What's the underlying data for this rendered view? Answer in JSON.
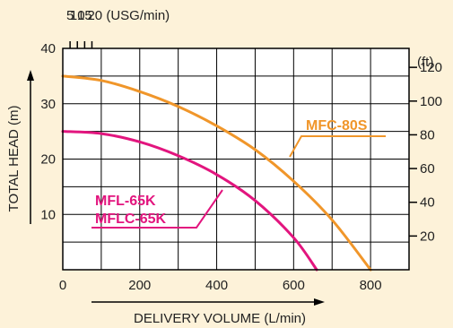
{
  "chart_data": {
    "type": "line",
    "title": "",
    "xlabel": "DELIVERY VOLUME (L/min)",
    "ylabel": "TOTAL HEAD (m)",
    "xlim": [
      0,
      900
    ],
    "ylim": [
      0,
      40
    ],
    "grid": true,
    "x_ticks": [
      0,
      200,
      400,
      600,
      800
    ],
    "x_tick_labels": [
      "0",
      "200",
      "400",
      "600",
      "800"
    ],
    "y_ticks": [
      10,
      20,
      30,
      40
    ],
    "y_tick_labels": [
      "10",
      "20",
      "30",
      "40"
    ],
    "top_axis": {
      "tick_values_lpm": [
        18.93,
        37.85,
        56.78,
        75.71
      ],
      "tick_labels": [
        "5",
        "10",
        "15",
        "20 (USG/min)"
      ]
    },
    "right_axis": {
      "unit_label": "(ft)",
      "tick_values_m": [
        6.096,
        12.192,
        18.288,
        24.384,
        30.48,
        36.576
      ],
      "tick_labels": [
        "20",
        "40",
        "60",
        "80",
        "100",
        "120"
      ]
    },
    "series": [
      {
        "name": "MFC-80S",
        "color": "#f0962a",
        "x": [
          0,
          100,
          200,
          300,
          400,
          500,
          600,
          700,
          800
        ],
        "y": [
          35.0,
          34.2,
          32.2,
          29.5,
          26.0,
          21.7,
          16.0,
          9.0,
          0.0
        ]
      },
      {
        "name": "MFL-65K / MFLC-65K",
        "color": "#e2157e",
        "x": [
          0,
          100,
          200,
          300,
          400,
          500,
          600,
          660
        ],
        "y": [
          25.0,
          24.6,
          23.1,
          20.6,
          17.2,
          12.5,
          5.8,
          0.0
        ]
      }
    ],
    "annotations": [
      {
        "text": "MFC-80S",
        "color": "#f0962a"
      },
      {
        "text": "MFL-65K",
        "color": "#e2157e"
      },
      {
        "text": "MFLC-65K",
        "color": "#e2157e"
      }
    ]
  }
}
